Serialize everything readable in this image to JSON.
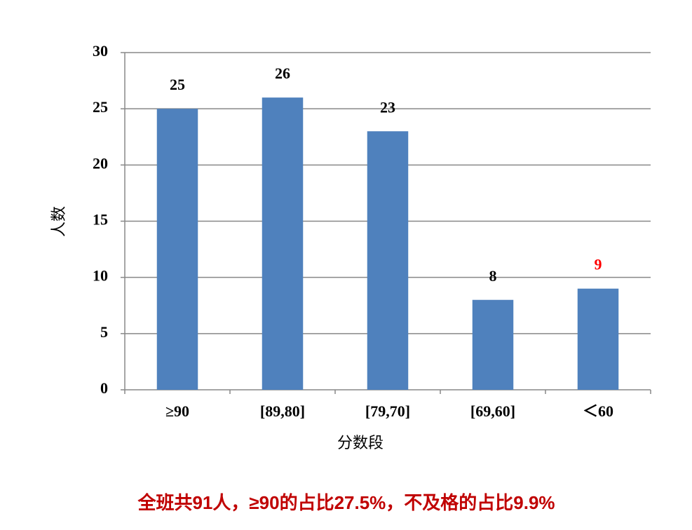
{
  "chart_data": {
    "type": "bar",
    "categories": [
      "≥90",
      "[89,80]",
      "[79,70]",
      "[69,60]",
      "＜60"
    ],
    "values": [
      25,
      26,
      23,
      8,
      9
    ],
    "color": "#4f81bd",
    "label_colors": [
      "#000000",
      "#000000",
      "#000000",
      "#000000",
      "#ff0000"
    ],
    "ylim": [
      0,
      30
    ],
    "yticks": [
      0,
      5,
      10,
      15,
      20,
      25,
      30
    ],
    "grid": true,
    "x_label": "分数段",
    "y_label": "人数",
    "caption": "全班共91人，≥90的占比27.5%，不及格的占比9.9%"
  }
}
